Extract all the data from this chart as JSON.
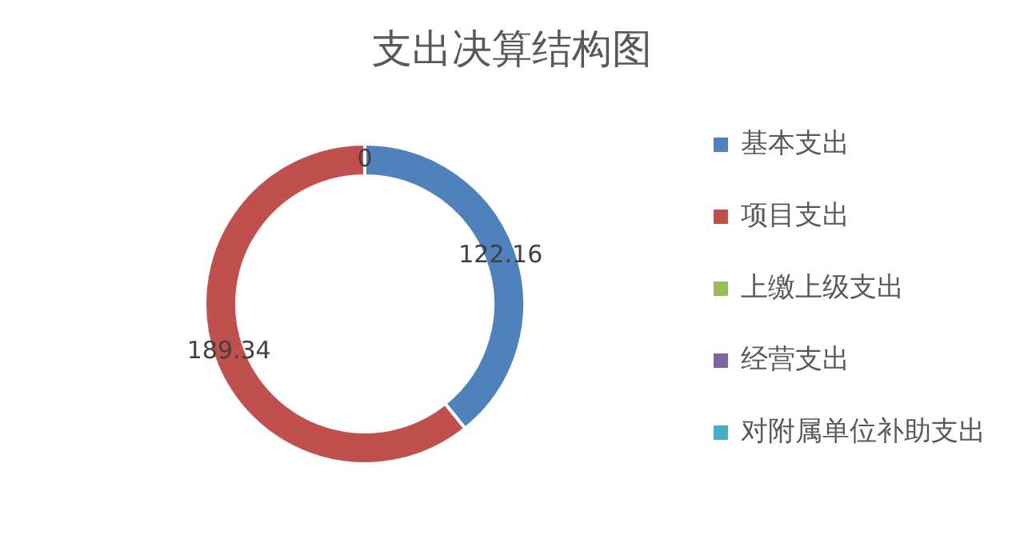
{
  "chart_data": {
    "type": "donut",
    "title": "支出决算结构图",
    "categories": [
      "基本支出",
      "项目支出",
      "上缴上级支出",
      "经营支出",
      "对附属单位补助支出"
    ],
    "values": [
      122.16,
      189.34,
      0,
      0,
      0
    ],
    "value_labels": [
      "122.16",
      "189.34",
      "0",
      null,
      null
    ],
    "colors": [
      "#4f81bd",
      "#c0504d",
      "#9bbb59",
      "#8064a2",
      "#4bacc6"
    ],
    "legend": "right"
  }
}
